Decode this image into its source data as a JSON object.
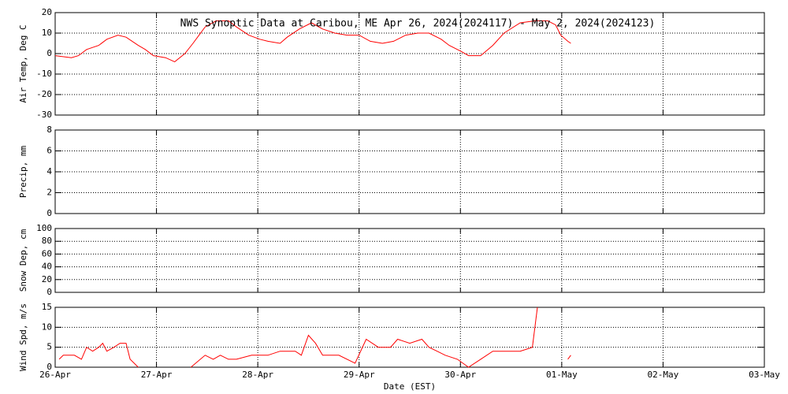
{
  "chart_data": [
    {
      "type": "line",
      "title": "NWS Synoptic Data at Caribou, ME   Apr 26, 2024(2024117) - May  2, 2024(2024123)",
      "ylabel": "Air Temp, Deg C",
      "color": "#ff0000",
      "grid": true,
      "ylim": [
        -30,
        20
      ],
      "yticks": [
        -30,
        -20,
        -10,
        0,
        10,
        20
      ],
      "x": [
        0,
        0.16,
        0.23,
        0.31,
        0.43,
        0.51,
        0.62,
        0.7,
        0.82,
        0.89,
        0.97,
        1.09,
        1.18,
        1.28,
        1.36,
        1.48,
        1.59,
        1.71,
        1.79,
        1.91,
        2.02,
        2.1,
        2.22,
        2.29,
        2.41,
        2.53,
        2.64,
        2.76,
        2.88,
        3.0,
        3.11,
        3.23,
        3.34,
        3.46,
        3.58,
        3.69,
        3.81,
        3.89,
        4.01,
        4.08,
        4.2,
        4.32,
        4.43,
        4.59,
        4.74,
        4.86,
        4.94,
        4.99,
        5.06,
        5.09
      ],
      "values": [
        -1,
        -2,
        -1,
        2,
        4,
        7,
        9,
        8,
        4,
        2,
        -1,
        -2,
        -4,
        0,
        5,
        13,
        16,
        16,
        13,
        9,
        7,
        6,
        5,
        8,
        12,
        15,
        12,
        10,
        9,
        9,
        6,
        5,
        6,
        9,
        10,
        10,
        7,
        4,
        1,
        -1,
        -1,
        4,
        10,
        15,
        16,
        16,
        14,
        9,
        6,
        5
      ]
    },
    {
      "type": "line",
      "ylabel": "Precip, mm",
      "color": "#ff0000",
      "grid": true,
      "ylim": [
        0,
        8
      ],
      "yticks": [
        0,
        2,
        4,
        6,
        8
      ],
      "x": [],
      "values": []
    },
    {
      "type": "line",
      "ylabel": "Snow Dep, cm",
      "color": "#ff0000",
      "grid": true,
      "ylim": [
        0,
        100
      ],
      "yticks": [
        0,
        20,
        40,
        60,
        80,
        100
      ],
      "x": [],
      "values": []
    },
    {
      "type": "line",
      "ylabel": "Wind Spd, m/s",
      "xlabel": "Date (EST)",
      "color": "#ff0000",
      "grid": true,
      "ylim": [
        0,
        15
      ],
      "yticks": [
        0,
        5,
        10,
        15
      ],
      "xlim": [
        0,
        7
      ],
      "xticks": [
        {
          "value": 0,
          "label": "26-Apr"
        },
        {
          "value": 1,
          "label": "27-Apr"
        },
        {
          "value": 2,
          "label": "28-Apr"
        },
        {
          "value": 3,
          "label": "29-Apr"
        },
        {
          "value": 4,
          "label": "30-Apr"
        },
        {
          "value": 5,
          "label": "01-May"
        },
        {
          "value": 6,
          "label": "02-May"
        },
        {
          "value": 7,
          "label": "03-May"
        }
      ],
      "x": [
        0.04,
        0.08,
        0.19,
        0.26,
        0.31,
        0.37,
        0.43,
        0.47,
        0.51,
        0.58,
        0.64,
        0.7,
        0.74,
        0.82,
        1.0,
        1.34,
        1.48,
        1.56,
        1.63,
        1.71,
        1.79,
        1.94,
        2.1,
        2.22,
        2.37,
        2.43,
        2.5,
        2.57,
        2.64,
        2.8,
        2.96,
        3.07,
        3.19,
        3.31,
        3.38,
        3.5,
        3.62,
        3.69,
        3.77,
        3.85,
        3.97,
        4.08,
        4.2,
        4.32,
        4.43,
        4.59,
        4.71,
        4.76,
        5.0,
        5.06,
        5.09
      ],
      "values": [
        2,
        3,
        3,
        2,
        5,
        4,
        5,
        6,
        4,
        5,
        6,
        6,
        2,
        0,
        null,
        0,
        3,
        2,
        3,
        2,
        2,
        3,
        3,
        4,
        4,
        3,
        8,
        6,
        3,
        3,
        1,
        7,
        5,
        5,
        7,
        6,
        7,
        5,
        4,
        3,
        2,
        0,
        2,
        4,
        4,
        4,
        5,
        15,
        null,
        2,
        3
      ]
    }
  ]
}
